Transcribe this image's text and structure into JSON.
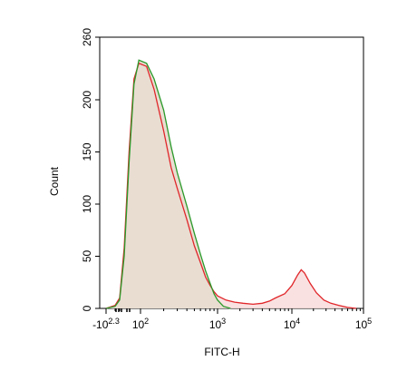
{
  "chart_data": {
    "type": "area",
    "title": "",
    "xlabel": "FITC-H",
    "ylabel": "Count",
    "ylim": [
      0,
      260
    ],
    "x_scale": "biexponential",
    "x_ticks": [
      {
        "base": "-10",
        "exp": "2.3"
      },
      {
        "base": "10",
        "exp": "2"
      },
      {
        "base": "10",
        "exp": "3"
      },
      {
        "base": "10",
        "exp": "4"
      },
      {
        "base": "10",
        "exp": "5"
      }
    ],
    "y_ticks": [
      "0",
      "50",
      "100",
      "150",
      "200",
      "260"
    ],
    "grid": false,
    "legend": "none",
    "series": [
      {
        "color": "#e0262a",
        "fill": "#f9dede",
        "x": [
          -200,
          -100,
          -50,
          0,
          30,
          60,
          90,
          120,
          150,
          200,
          250,
          300,
          400,
          500,
          600,
          700,
          800,
          900,
          1000,
          1300,
          1700,
          2200,
          3000,
          4000,
          5000,
          6000,
          8000,
          10000,
          12000,
          13500,
          15000,
          18000,
          22000,
          28000,
          35000,
          45000,
          60000,
          80000
        ],
        "values": [
          0,
          3,
          10,
          58,
          150,
          220,
          235,
          232,
          210,
          170,
          135,
          115,
          85,
          60,
          44,
          30,
          22,
          16,
          12,
          8,
          6,
          5,
          4,
          5,
          7,
          10,
          14,
          22,
          32,
          37,
          34,
          24,
          15,
          8,
          5,
          3,
          1,
          0
        ]
      },
      {
        "color": "#2a9a2a",
        "fill": "#e8dcd0",
        "x": [
          -200,
          -100,
          -50,
          0,
          30,
          60,
          90,
          120,
          150,
          200,
          250,
          300,
          400,
          500,
          600,
          700,
          800,
          900,
          1000,
          1200,
          1500
        ],
        "values": [
          0,
          2,
          8,
          50,
          140,
          215,
          238,
          235,
          220,
          190,
          155,
          130,
          98,
          72,
          52,
          36,
          24,
          14,
          8,
          2,
          0
        ]
      }
    ]
  }
}
